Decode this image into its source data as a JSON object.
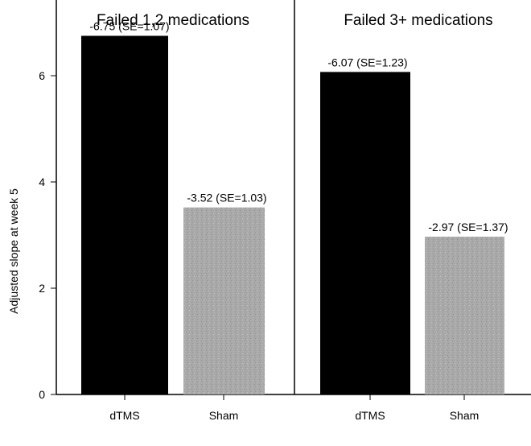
{
  "chart_data": {
    "type": "bar",
    "ylabel": "Adjusted slope at week 5",
    "ylim": [
      0,
      7.5
    ],
    "yticks": [
      0,
      2,
      4,
      6
    ],
    "grid": false,
    "bar_colors": [
      "#000000",
      "#a8a8a8"
    ],
    "panels": [
      {
        "title": "Failed 1,2 medications",
        "categories": [
          "dTMS",
          "Sham"
        ],
        "values": [
          6.75,
          3.52
        ],
        "labels": [
          "-6.75 (SE=1.07)",
          "-3.52 (SE=1.03)"
        ]
      },
      {
        "title": "Failed 3+ medications",
        "categories": [
          "dTMS",
          "Sham"
        ],
        "values": [
          6.07,
          2.97
        ],
        "labels": [
          "-6.07 (SE=1.23)",
          "-2.97 (SE=1.37)"
        ]
      }
    ]
  }
}
